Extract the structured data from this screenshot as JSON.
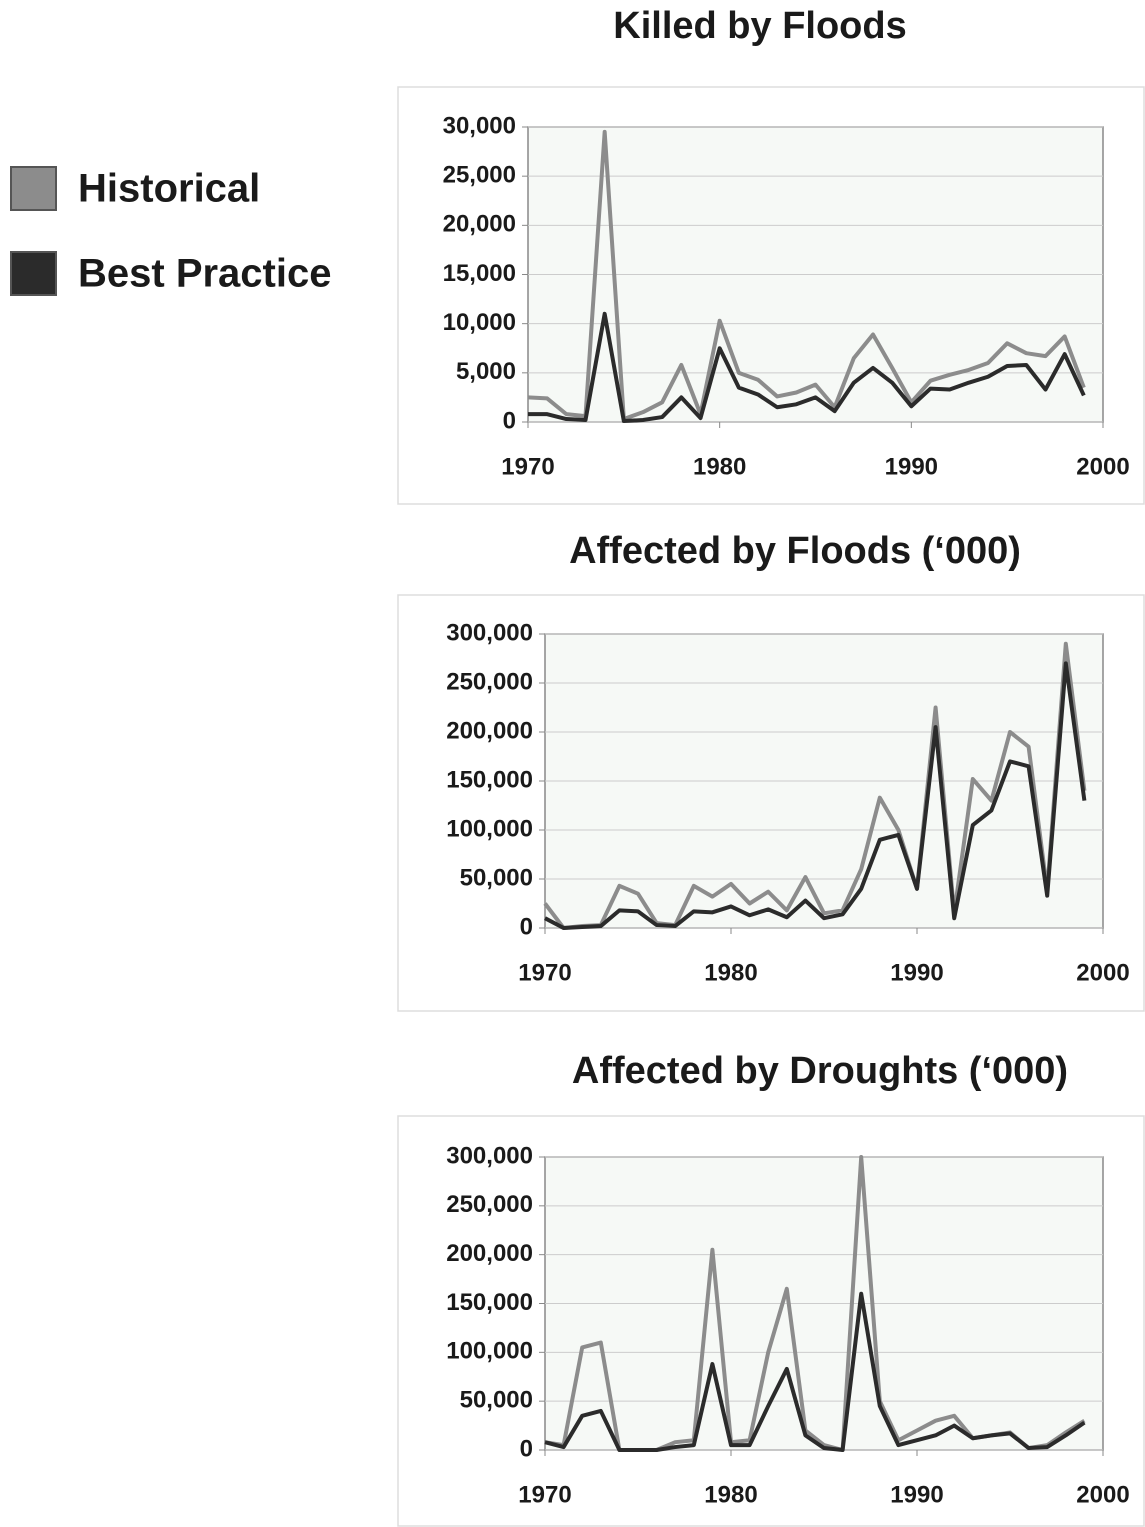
{
  "chart_data": [
    {
      "type": "line",
      "title": "Killed by Floods",
      "x": [
        1970,
        1971,
        1972,
        1973,
        1974,
        1975,
        1976,
        1977,
        1978,
        1979,
        1980,
        1981,
        1982,
        1983,
        1984,
        1985,
        1986,
        1987,
        1988,
        1989,
        1990,
        1991,
        1992,
        1993,
        1994,
        1995,
        1996,
        1997,
        1998,
        1999
      ],
      "series": [
        {
          "name": "Historical",
          "color": "#8c8c8c",
          "values": [
            2500,
            2400,
            800,
            600,
            29500,
            300,
            1000,
            2000,
            5800,
            800,
            10300,
            5000,
            4300,
            2600,
            3000,
            3800,
            1500,
            6500,
            8900,
            5500,
            2000,
            4200,
            4800,
            5300,
            6000,
            8000,
            7000,
            6700,
            8700,
            3500
          ]
        },
        {
          "name": "Best Practice",
          "color": "#2b2b2b",
          "values": [
            800,
            800,
            300,
            200,
            11000,
            100,
            200,
            500,
            2500,
            400,
            7500,
            3500,
            2800,
            1500,
            1800,
            2500,
            1100,
            4000,
            5500,
            4000,
            1600,
            3400,
            3300,
            4000,
            4600,
            5700,
            5800,
            3300,
            6900,
            2700
          ]
        }
      ],
      "xlim": [
        1970,
        2000
      ],
      "xticks": [
        1970,
        1980,
        1990,
        2000
      ],
      "ylim": [
        0,
        30000
      ],
      "yticks": [
        0,
        {
          "value": 5000,
          "label": "5,000"
        },
        {
          "value": 10000,
          "label": "10,000"
        },
        {
          "value": 15000,
          "label": "15,000"
        },
        {
          "value": 20000,
          "label": "20,000"
        },
        {
          "value": 25000,
          "label": "25,000"
        },
        {
          "value": 30000,
          "label": "30,000"
        }
      ],
      "grid": true
    },
    {
      "type": "line",
      "title": "Affected by Floods (‘000)",
      "x": [
        1970,
        1971,
        1972,
        1973,
        1974,
        1975,
        1976,
        1977,
        1978,
        1979,
        1980,
        1981,
        1982,
        1983,
        1984,
        1985,
        1986,
        1987,
        1988,
        1989,
        1990,
        1991,
        1992,
        1993,
        1994,
        1995,
        1996,
        1997,
        1998,
        1999
      ],
      "series": [
        {
          "color": "#8c8c8c",
          "values": [
            25000,
            0,
            2000,
            3000,
            43000,
            35000,
            5000,
            3000,
            43000,
            32000,
            45000,
            25000,
            37000,
            18000,
            52000,
            15000,
            18000,
            60000,
            133000,
            100000,
            40000,
            225000,
            15000,
            152000,
            130000,
            200000,
            185000,
            38000,
            290000,
            140000
          ]
        },
        {
          "color": "#2b2b2b",
          "values": [
            10000,
            0,
            1000,
            2000,
            18000,
            17000,
            3000,
            2000,
            17000,
            16000,
            22000,
            13000,
            19000,
            11000,
            28000,
            10000,
            14000,
            40000,
            90000,
            95000,
            40000,
            205000,
            10000,
            105000,
            120000,
            170000,
            165000,
            33000,
            270000,
            130000
          ]
        }
      ],
      "xlim": [
        1970,
        2000
      ],
      "xticks": [
        1970,
        1980,
        1990,
        2000
      ],
      "ylim": [
        0,
        300000
      ],
      "yticks": [
        0,
        {
          "value": 50000,
          "label": "50,000"
        },
        {
          "value": 100000,
          "label": "100,000"
        },
        {
          "value": 150000,
          "label": "150,000"
        },
        {
          "value": 200000,
          "label": "200,000"
        },
        {
          "value": 250000,
          "label": "250,000"
        },
        {
          "value": 300000,
          "label": "300,000"
        }
      ],
      "grid": true
    },
    {
      "type": "line",
      "title": "Affected by Droughts (‘000)",
      "x": [
        1970,
        1971,
        1972,
        1973,
        1974,
        1975,
        1976,
        1977,
        1978,
        1979,
        1980,
        1981,
        1982,
        1983,
        1984,
        1985,
        1986,
        1987,
        1988,
        1989,
        1990,
        1991,
        1992,
        1993,
        1994,
        1995,
        1996,
        1997,
        1998,
        1999
      ],
      "series": [
        {
          "color": "#8c8c8c",
          "values": [
            8000,
            5000,
            105000,
            110000,
            0,
            0,
            0,
            8000,
            10000,
            205000,
            8000,
            10000,
            100000,
            165000,
            20000,
            5000,
            0,
            300000,
            50000,
            10000,
            20000,
            30000,
            35000,
            12000,
            15000,
            18000,
            2000,
            5000,
            18000,
            30000
          ]
        },
        {
          "color": "#2b2b2b",
          "values": [
            8000,
            3000,
            35000,
            40000,
            0,
            0,
            0,
            3000,
            5000,
            88000,
            5000,
            5000,
            45000,
            83000,
            15000,
            2000,
            0,
            160000,
            45000,
            5000,
            10000,
            15000,
            25000,
            12000,
            15000,
            17000,
            2000,
            3000,
            15000,
            28000
          ]
        }
      ],
      "xlim": [
        1970,
        2000
      ],
      "xticks": [
        1970,
        1980,
        1990,
        2000
      ],
      "ylim": [
        0,
        300000
      ],
      "yticks": [
        0,
        {
          "value": 50000,
          "label": "50,000"
        },
        {
          "value": 100000,
          "label": "100,000"
        },
        {
          "value": 150000,
          "label": "150,000"
        },
        {
          "value": 200000,
          "label": "200,000"
        },
        {
          "value": 250000,
          "label": "250,000"
        },
        {
          "value": 300000,
          "label": "300,000"
        }
      ],
      "grid": true
    }
  ]
}
